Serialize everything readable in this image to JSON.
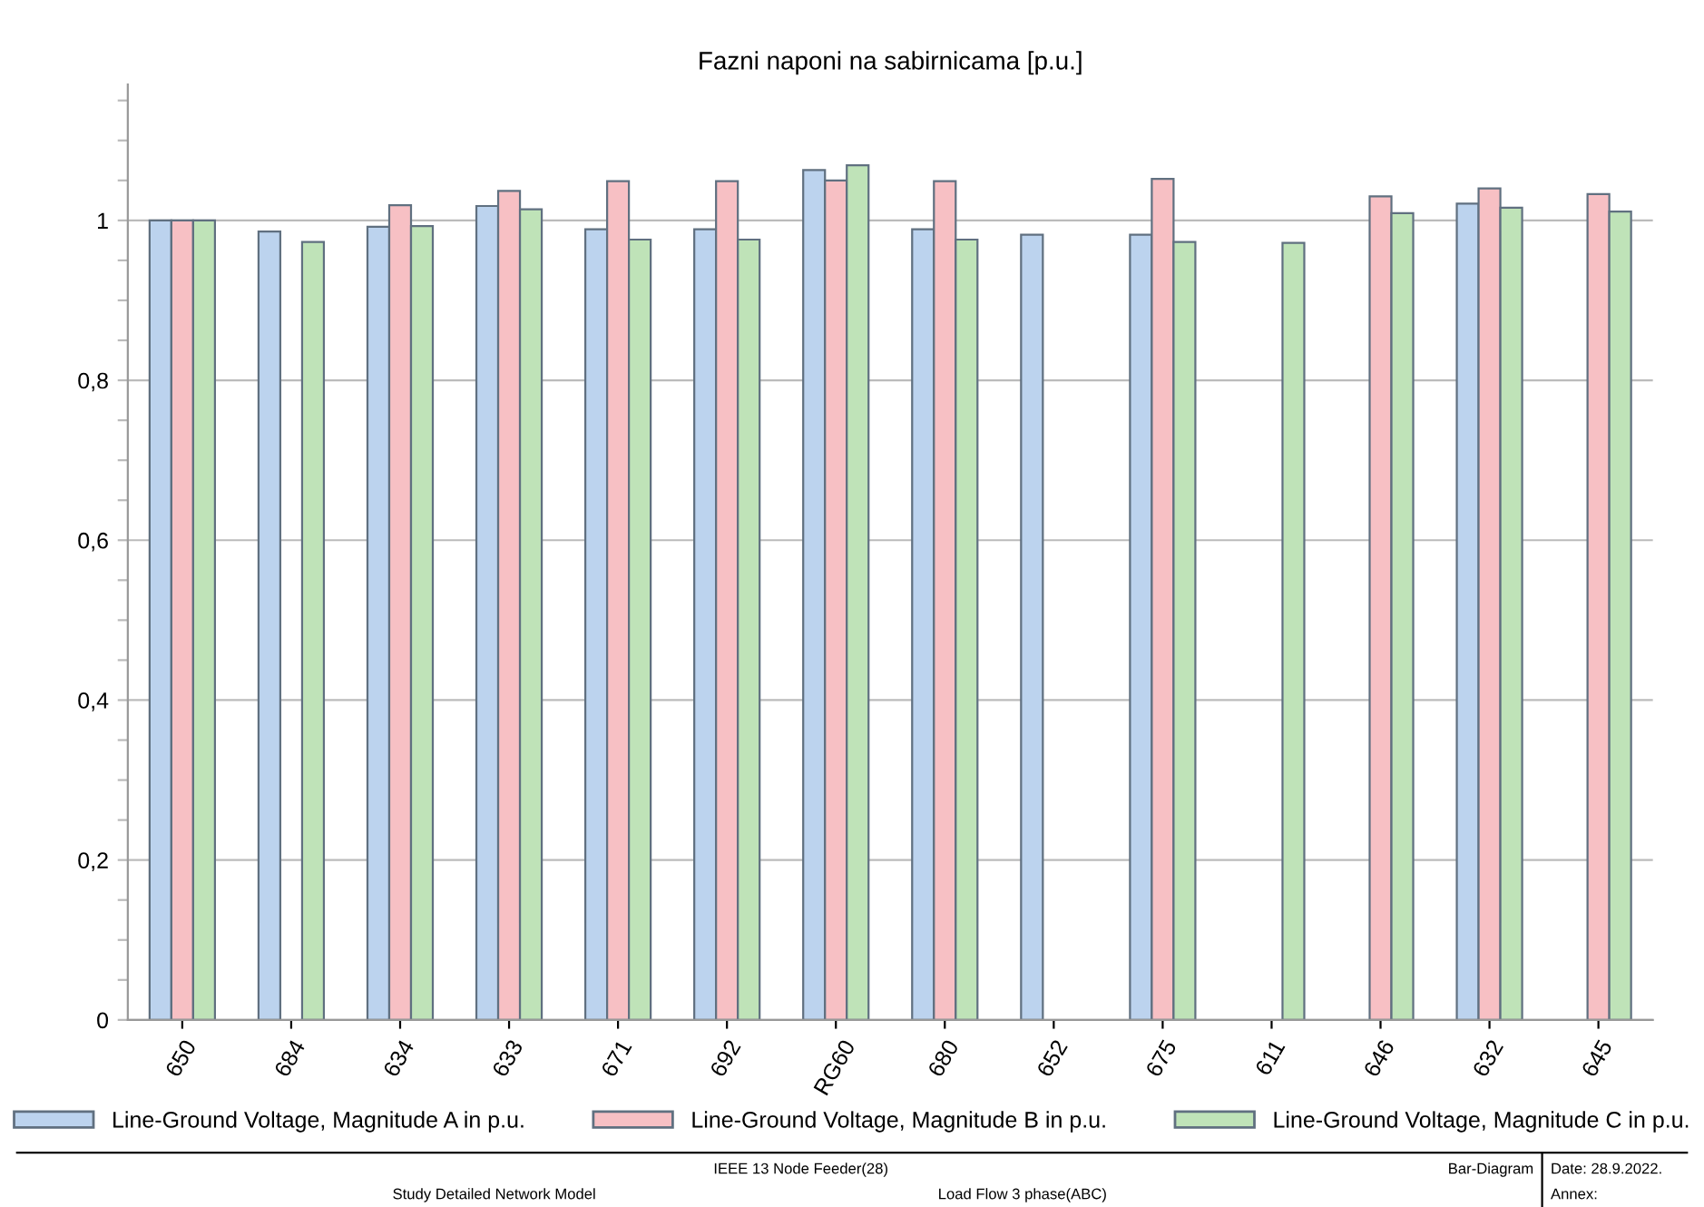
{
  "chart_data": {
    "type": "bar",
    "title": "Fazni naponi na sabirnicama [p.u.]",
    "categories": [
      "650",
      "684",
      "634",
      "633",
      "671",
      "692",
      "RG60",
      "680",
      "652",
      "675",
      "611",
      "646",
      "632",
      "645"
    ],
    "series": [
      {
        "name": "Line-Ground Voltage, Magnitude A in p.u.",
        "color": "#bcd3ee",
        "values": [
          1.0,
          0.986,
          0.992,
          1.018,
          0.989,
          0.989,
          1.063,
          0.989,
          0.982,
          0.982,
          null,
          null,
          1.021,
          null
        ]
      },
      {
        "name": "Line-Ground Voltage, Magnitude B in p.u.",
        "color": "#f7c0c4",
        "values": [
          1.0,
          null,
          1.019,
          1.037,
          1.049,
          1.049,
          1.05,
          1.049,
          null,
          1.052,
          null,
          1.03,
          1.04,
          1.033
        ]
      },
      {
        "name": "Line-Ground Voltage, Magnitude C in p.u.",
        "color": "#bfe3b8",
        "values": [
          1.0,
          0.973,
          0.993,
          1.014,
          0.976,
          0.976,
          1.069,
          0.976,
          null,
          0.973,
          0.972,
          1.009,
          1.016,
          1.011
        ]
      }
    ],
    "ylim": [
      0,
      1.17
    ],
    "yticks": [
      0,
      {
        "value": 0.05,
        "label": null
      },
      {
        "value": 0.1,
        "label": null
      },
      {
        "value": 0.15,
        "label": null
      },
      {
        "value": 0.2,
        "label": "0,2"
      },
      {
        "value": 0.25,
        "label": null
      },
      {
        "value": 0.3,
        "label": null
      },
      {
        "value": 0.35,
        "label": null
      },
      {
        "value": 0.4,
        "label": "0,4"
      },
      {
        "value": 0.45,
        "label": null
      },
      {
        "value": 0.5,
        "label": null
      },
      {
        "value": 0.55,
        "label": null
      },
      {
        "value": 0.6,
        "label": "0,6"
      },
      {
        "value": 0.65,
        "label": null
      },
      {
        "value": 0.7,
        "label": null
      },
      {
        "value": 0.75,
        "label": null
      },
      {
        "value": 0.8,
        "label": "0,8"
      },
      {
        "value": 0.85,
        "label": null
      },
      {
        "value": 0.9,
        "label": null
      },
      {
        "value": 0.95,
        "label": null
      },
      1,
      {
        "value": 1.05,
        "label": null
      },
      {
        "value": 1.1,
        "label": null
      },
      {
        "value": 1.15,
        "label": null
      }
    ],
    "grid": "y",
    "legend": "bottom",
    "annotations": [
      "IEEE 13 Node Feeder(28)",
      "Study Detailed Network Model",
      "Load Flow 3 phase(ABC)",
      "Bar-Diagram",
      "Date: 28.9.2022.",
      "Annex:"
    ]
  }
}
